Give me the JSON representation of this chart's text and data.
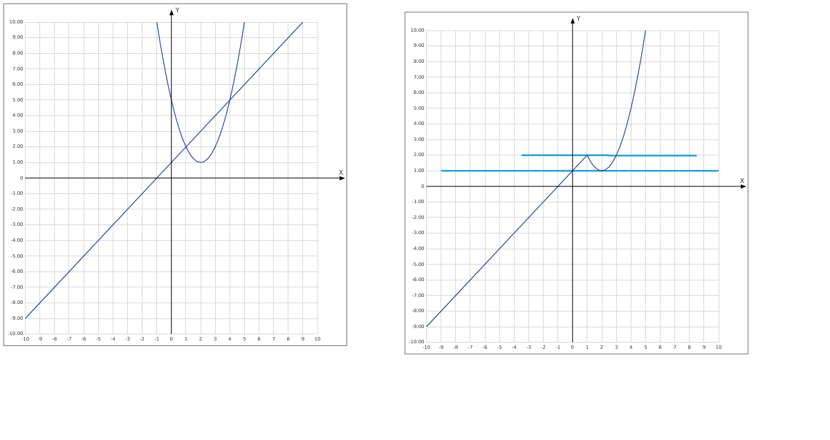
{
  "chart_data": [
    {
      "type": "line",
      "xlabel": "X",
      "ylabel": "Y",
      "xlim": [
        -10,
        10
      ],
      "ylim": [
        -10,
        10
      ],
      "grid": true,
      "xticks": [
        -10,
        -9,
        -8,
        -7,
        -6,
        -5,
        -4,
        -3,
        -2,
        -1,
        0,
        1,
        2,
        3,
        4,
        5,
        6,
        7,
        8,
        9,
        10
      ],
      "yticks": [
        {
          "value": -10,
          "label": "-10.00"
        },
        {
          "value": -9,
          "label": "-9.00"
        },
        {
          "value": -8,
          "label": "-8.00"
        },
        {
          "value": -7,
          "label": "-7.00"
        },
        {
          "value": -6,
          "label": "-6.00"
        },
        {
          "value": -5,
          "label": "-5.00"
        },
        {
          "value": -4,
          "label": "-4.00"
        },
        {
          "value": -3,
          "label": "-3.00"
        },
        {
          "value": -2,
          "label": "-2.00"
        },
        {
          "value": -1,
          "label": "-1.00"
        },
        0,
        {
          "value": 1,
          "label": "1.00"
        },
        {
          "value": 2,
          "label": "2.00"
        },
        {
          "value": 3,
          "label": "3.00"
        },
        {
          "value": 4,
          "label": "4.00"
        },
        {
          "value": 5,
          "label": "5.00"
        },
        {
          "value": 6,
          "label": "6.00"
        },
        {
          "value": 7,
          "label": "7.00"
        },
        {
          "value": 8,
          "label": "8.00"
        },
        {
          "value": 9,
          "label": "9.00"
        },
        {
          "value": 10,
          "label": "10.00"
        }
      ],
      "series": [
        {
          "color": "#2e3f9e",
          "x": [
            -10,
            9
          ],
          "values": [
            -9,
            10
          ]
        },
        {
          "color": "#2e3f9e",
          "x": [
            -1,
            -0.75,
            -0.5,
            -0.25,
            0,
            0.25,
            0.5,
            0.75,
            1,
            1.25,
            1.5,
            1.75,
            2,
            2.25,
            2.5,
            2.75,
            3,
            3.25,
            3.5,
            3.75,
            4,
            4.25,
            4.5,
            4.75,
            5
          ],
          "values": [
            10,
            8.56,
            7.25,
            6.06,
            5,
            4.06,
            3.25,
            2.56,
            2,
            1.56,
            1.25,
            1.06,
            1,
            1.06,
            1.25,
            1.56,
            2,
            2.56,
            3.25,
            4.06,
            5,
            6.06,
            7.25,
            8.56,
            10
          ]
        }
      ]
    },
    {
      "type": "line",
      "xlabel": "X",
      "ylabel": "Y",
      "xlim": [
        -10,
        10
      ],
      "ylim": [
        -10,
        10
      ],
      "grid": true,
      "xticks": [
        -10,
        -9,
        -8,
        -7,
        -6,
        -5,
        -4,
        -3,
        -2,
        -1,
        0,
        1,
        2,
        3,
        4,
        5,
        6,
        7,
        8,
        9,
        10
      ],
      "yticks": [
        {
          "value": -10,
          "label": "-10.00"
        },
        {
          "value": -9,
          "label": "-9.00"
        },
        {
          "value": -8,
          "label": "-8.00"
        },
        {
          "value": -7,
          "label": "-7.00"
        },
        {
          "value": -6,
          "label": "-6.00"
        },
        {
          "value": -5,
          "label": "-5.00"
        },
        {
          "value": -4,
          "label": "-4.00"
        },
        {
          "value": -3,
          "label": "-3.00"
        },
        {
          "value": -2,
          "label": "-2.00"
        },
        {
          "value": -1,
          "label": "-1.00"
        },
        0,
        {
          "value": 1,
          "label": "1.00"
        },
        {
          "value": 2,
          "label": "2.00"
        },
        {
          "value": 3,
          "label": "3.00"
        },
        {
          "value": 4,
          "label": "4.00"
        },
        {
          "value": 5,
          "label": "5.00"
        },
        {
          "value": 6,
          "label": "6.00"
        },
        {
          "value": 7,
          "label": "7.00"
        },
        {
          "value": 8,
          "label": "8.00"
        },
        {
          "value": 9,
          "label": "9.00"
        },
        {
          "value": 10,
          "label": "10.00"
        }
      ],
      "series": [
        {
          "color": "#2e3f9e",
          "x": [
            -10,
            1,
            1.25,
            1.5,
            1.75,
            2,
            2.25,
            2.5,
            2.75,
            3,
            3.25,
            3.5,
            3.75,
            4,
            4.25,
            4.5,
            4.75,
            5
          ],
          "values": [
            -9,
            2,
            1.56,
            1.25,
            1.06,
            1,
            1.06,
            1.25,
            1.56,
            2,
            2.56,
            3.25,
            4.06,
            5,
            6.06,
            7.25,
            8.56,
            10
          ]
        },
        {
          "color": "#1fa3dd",
          "x": [
            -9,
            10
          ],
          "values": [
            1,
            1
          ]
        },
        {
          "color": "#1fa3dd",
          "x": [
            -3.5,
            2.5,
            2.5,
            8.5
          ],
          "values": [
            2,
            2,
            1.97,
            1.97
          ]
        }
      ]
    }
  ]
}
